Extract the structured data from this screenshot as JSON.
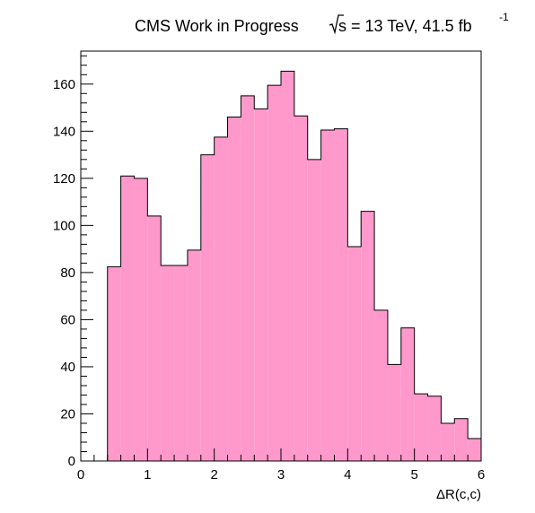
{
  "chart_data": {
    "type": "bar",
    "title": "CMS Work in Progress",
    "title_energy": "s = 13 TeV, 41.5 fb",
    "title_energy_sup": "-1",
    "xlabel": "ΔR(c,c)",
    "ylabel": "",
    "xlim": [
      0,
      6
    ],
    "ylim": [
      0,
      174
    ],
    "bin_width": 0.2,
    "bin_edges_start": 0,
    "values": [
      0,
      0,
      82.5,
      121,
      120,
      104,
      83,
      83,
      89.5,
      130,
      137.5,
      146,
      155,
      149.5,
      159.5,
      165.5,
      146.5,
      128,
      140.5,
      141,
      91,
      106,
      64,
      41,
      56.5,
      28.5,
      27.5,
      16,
      18,
      9.5
    ],
    "xticks": [
      "0",
      "1",
      "2",
      "3",
      "4",
      "5",
      "6"
    ],
    "yticks": [
      "0",
      "20",
      "40",
      "60",
      "80",
      "100",
      "120",
      "140",
      "160"
    ],
    "grid": false,
    "fill_color": "#ff99cc",
    "line_color": "#000000"
  }
}
